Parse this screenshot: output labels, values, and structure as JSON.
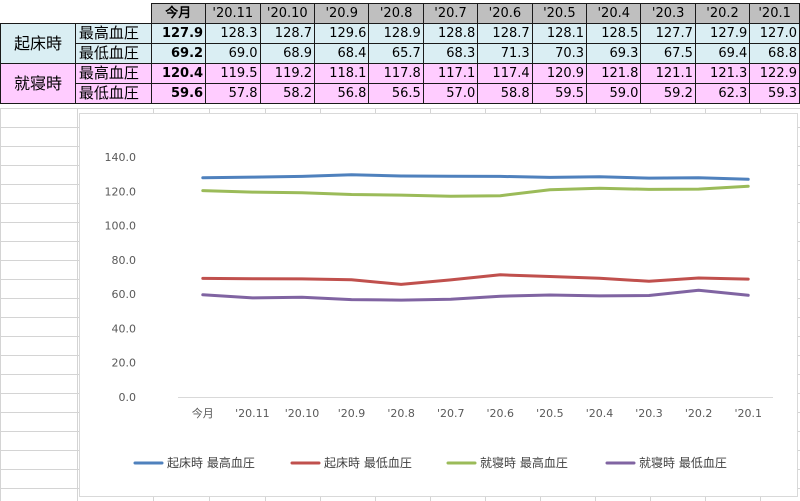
{
  "table": {
    "columns": [
      "今月",
      "'20.11",
      "'20.10",
      "'20.9",
      "'20.8",
      "'20.7",
      "'20.6",
      "'20.5",
      "'20.4",
      "'20.3",
      "'20.2",
      "'20.1"
    ],
    "groups": [
      {
        "label": "起床時",
        "rows": [
          {
            "metric": "最高血圧",
            "values": [
              "127.9",
              "128.3",
              "128.7",
              "129.6",
              "128.9",
              "128.8",
              "128.7",
              "128.1",
              "128.5",
              "127.7",
              "127.9",
              "127.0"
            ]
          },
          {
            "metric": "最低血圧",
            "values": [
              "69.2",
              "69.0",
              "68.9",
              "68.4",
              "65.7",
              "68.3",
              "71.3",
              "70.3",
              "69.3",
              "67.5",
              "69.4",
              "68.8"
            ]
          }
        ]
      },
      {
        "label": "就寝時",
        "rows": [
          {
            "metric": "最高血圧",
            "values": [
              "120.4",
              "119.5",
              "119.2",
              "118.1",
              "117.8",
              "117.1",
              "117.4",
              "120.9",
              "121.8",
              "121.1",
              "121.3",
              "122.9"
            ]
          },
          {
            "metric": "最低血圧",
            "values": [
              "59.6",
              "57.8",
              "58.2",
              "56.8",
              "56.5",
              "57.0",
              "58.8",
              "59.5",
              "59.0",
              "59.2",
              "62.3",
              "59.3"
            ]
          }
        ]
      }
    ],
    "colors": {
      "header": "#bfbfbf",
      "morning": "#daeef3",
      "bedtime": "#ffccff"
    }
  },
  "chart_data": {
    "type": "line",
    "categories": [
      "今月",
      "'20.11",
      "'20.10",
      "'20.9",
      "'20.8",
      "'20.7",
      "'20.6",
      "'20.5",
      "'20.4",
      "'20.3",
      "'20.2",
      "'20.1"
    ],
    "series": [
      {
        "name": "起床時 最高血圧",
        "color": "#4f81bd",
        "values": [
          127.9,
          128.3,
          128.7,
          129.6,
          128.9,
          128.8,
          128.7,
          128.1,
          128.5,
          127.7,
          127.9,
          127.0
        ]
      },
      {
        "name": "起床時 最低血圧",
        "color": "#c0504d",
        "values": [
          69.2,
          69.0,
          68.9,
          68.4,
          65.7,
          68.3,
          71.3,
          70.3,
          69.3,
          67.5,
          69.4,
          68.8
        ]
      },
      {
        "name": "就寝時 最高血圧",
        "color": "#9bbb59",
        "values": [
          120.4,
          119.5,
          119.2,
          118.1,
          117.8,
          117.1,
          117.4,
          120.9,
          121.8,
          121.1,
          121.3,
          122.9
        ]
      },
      {
        "name": "就寝時 最低血圧",
        "color": "#8064a2",
        "values": [
          59.6,
          57.8,
          58.2,
          56.8,
          56.5,
          57.0,
          58.8,
          59.5,
          59.0,
          59.2,
          62.3,
          59.3
        ]
      }
    ],
    "ylim": [
      0,
      140
    ],
    "yticks": [
      "0.0",
      "20.0",
      "40.0",
      "60.0",
      "80.0",
      "100.0",
      "120.0",
      "140.0"
    ],
    "grid": false,
    "legend": "bottom"
  }
}
